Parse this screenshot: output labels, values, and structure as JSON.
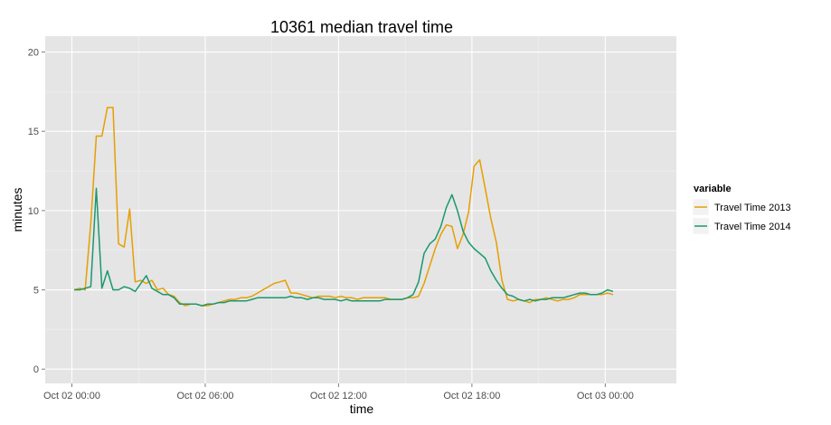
{
  "chart_data": {
    "type": "line",
    "title": "10361 median travel time",
    "xlabel": "time",
    "ylabel": "minutes",
    "x_unit": "hours from Oct 02 00:00",
    "xlim": [
      -1.2,
      27.2
    ],
    "ylim": [
      -0.9,
      21.0
    ],
    "x_ticks": [
      {
        "value": 0,
        "label": "Oct 02 00:00"
      },
      {
        "value": 6,
        "label": "Oct 02 06:00"
      },
      {
        "value": 12,
        "label": "Oct 02 12:00"
      },
      {
        "value": 18,
        "label": "Oct 02 18:00"
      },
      {
        "value": 24,
        "label": "Oct 03 00:00"
      }
    ],
    "y_ticks": [
      {
        "value": 0,
        "label": "0"
      },
      {
        "value": 5,
        "label": "5"
      },
      {
        "value": 10,
        "label": "10"
      },
      {
        "value": 15,
        "label": "15"
      },
      {
        "value": 20,
        "label": "20"
      }
    ],
    "grid": true,
    "legend": {
      "title": "variable",
      "position": "right"
    },
    "series": [
      {
        "name": "Travel Time 2013",
        "color": "#E69F00",
        "points": [
          [
            0.1,
            5.0
          ],
          [
            0.35,
            5.1
          ],
          [
            0.6,
            5.0
          ],
          [
            0.85,
            9.2
          ],
          [
            1.1,
            14.7
          ],
          [
            1.35,
            14.7
          ],
          [
            1.6,
            16.5
          ],
          [
            1.85,
            16.5
          ],
          [
            2.1,
            7.9
          ],
          [
            2.35,
            7.7
          ],
          [
            2.6,
            10.1
          ],
          [
            2.85,
            5.5
          ],
          [
            3.1,
            5.6
          ],
          [
            3.35,
            5.4
          ],
          [
            3.6,
            5.6
          ],
          [
            3.85,
            5.0
          ],
          [
            4.1,
            5.1
          ],
          [
            4.35,
            4.7
          ],
          [
            4.6,
            4.6
          ],
          [
            4.85,
            4.2
          ],
          [
            5.1,
            4.0
          ],
          [
            5.35,
            4.1
          ],
          [
            5.6,
            4.1
          ],
          [
            5.85,
            4.0
          ],
          [
            6.1,
            4.0
          ],
          [
            6.35,
            4.1
          ],
          [
            6.6,
            4.2
          ],
          [
            6.85,
            4.3
          ],
          [
            7.1,
            4.4
          ],
          [
            7.35,
            4.4
          ],
          [
            7.6,
            4.5
          ],
          [
            7.85,
            4.5
          ],
          [
            8.1,
            4.6
          ],
          [
            8.35,
            4.8
          ],
          [
            8.6,
            5.0
          ],
          [
            8.85,
            5.2
          ],
          [
            9.1,
            5.4
          ],
          [
            9.35,
            5.5
          ],
          [
            9.6,
            5.6
          ],
          [
            9.85,
            4.8
          ],
          [
            10.1,
            4.8
          ],
          [
            10.35,
            4.7
          ],
          [
            10.6,
            4.6
          ],
          [
            10.85,
            4.5
          ],
          [
            11.1,
            4.6
          ],
          [
            11.35,
            4.6
          ],
          [
            11.6,
            4.6
          ],
          [
            11.85,
            4.5
          ],
          [
            12.1,
            4.6
          ],
          [
            12.35,
            4.5
          ],
          [
            12.6,
            4.5
          ],
          [
            12.85,
            4.4
          ],
          [
            13.1,
            4.5
          ],
          [
            13.35,
            4.5
          ],
          [
            13.6,
            4.5
          ],
          [
            13.85,
            4.5
          ],
          [
            14.1,
            4.5
          ],
          [
            14.35,
            4.4
          ],
          [
            14.6,
            4.4
          ],
          [
            14.85,
            4.4
          ],
          [
            15.1,
            4.5
          ],
          [
            15.35,
            4.5
          ],
          [
            15.6,
            4.6
          ],
          [
            15.85,
            5.4
          ],
          [
            16.1,
            6.5
          ],
          [
            16.35,
            7.6
          ],
          [
            16.6,
            8.5
          ],
          [
            16.85,
            9.1
          ],
          [
            17.1,
            9.0
          ],
          [
            17.35,
            7.6
          ],
          [
            17.6,
            8.5
          ],
          [
            17.85,
            9.9
          ],
          [
            18.1,
            12.8
          ],
          [
            18.35,
            13.2
          ],
          [
            18.6,
            11.4
          ],
          [
            18.85,
            9.5
          ],
          [
            19.1,
            8.0
          ],
          [
            19.35,
            5.6
          ],
          [
            19.6,
            4.4
          ],
          [
            19.85,
            4.3
          ],
          [
            20.1,
            4.4
          ],
          [
            20.35,
            4.3
          ],
          [
            20.6,
            4.2
          ],
          [
            20.85,
            4.4
          ],
          [
            21.1,
            4.4
          ],
          [
            21.35,
            4.5
          ],
          [
            21.6,
            4.4
          ],
          [
            21.85,
            4.3
          ],
          [
            22.1,
            4.4
          ],
          [
            22.35,
            4.4
          ],
          [
            22.6,
            4.5
          ],
          [
            22.85,
            4.7
          ],
          [
            23.1,
            4.7
          ],
          [
            23.35,
            4.7
          ],
          [
            23.6,
            4.7
          ],
          [
            23.85,
            4.7
          ],
          [
            24.1,
            4.8
          ],
          [
            24.35,
            4.7
          ]
        ]
      },
      {
        "name": "Travel Time 2014",
        "color": "#1A9870",
        "points": [
          [
            0.1,
            5.0
          ],
          [
            0.35,
            5.0
          ],
          [
            0.6,
            5.1
          ],
          [
            0.85,
            5.2
          ],
          [
            1.1,
            11.4
          ],
          [
            1.35,
            5.1
          ],
          [
            1.6,
            6.2
          ],
          [
            1.85,
            5.0
          ],
          [
            2.1,
            5.0
          ],
          [
            2.35,
            5.2
          ],
          [
            2.6,
            5.1
          ],
          [
            2.85,
            4.9
          ],
          [
            3.1,
            5.4
          ],
          [
            3.35,
            5.9
          ],
          [
            3.6,
            5.1
          ],
          [
            3.85,
            4.9
          ],
          [
            4.1,
            4.7
          ],
          [
            4.35,
            4.7
          ],
          [
            4.6,
            4.5
          ],
          [
            4.85,
            4.1
          ],
          [
            5.1,
            4.1
          ],
          [
            5.35,
            4.1
          ],
          [
            5.6,
            4.1
          ],
          [
            5.85,
            4.0
          ],
          [
            6.1,
            4.1
          ],
          [
            6.35,
            4.1
          ],
          [
            6.6,
            4.2
          ],
          [
            6.85,
            4.2
          ],
          [
            7.1,
            4.3
          ],
          [
            7.35,
            4.3
          ],
          [
            7.6,
            4.3
          ],
          [
            7.85,
            4.3
          ],
          [
            8.1,
            4.4
          ],
          [
            8.35,
            4.5
          ],
          [
            8.6,
            4.5
          ],
          [
            8.85,
            4.5
          ],
          [
            9.1,
            4.5
          ],
          [
            9.35,
            4.5
          ],
          [
            9.6,
            4.5
          ],
          [
            9.85,
            4.6
          ],
          [
            10.1,
            4.5
          ],
          [
            10.35,
            4.5
          ],
          [
            10.6,
            4.4
          ],
          [
            10.85,
            4.5
          ],
          [
            11.1,
            4.5
          ],
          [
            11.35,
            4.4
          ],
          [
            11.6,
            4.4
          ],
          [
            11.85,
            4.4
          ],
          [
            12.1,
            4.3
          ],
          [
            12.35,
            4.4
          ],
          [
            12.6,
            4.3
          ],
          [
            12.85,
            4.3
          ],
          [
            13.1,
            4.3
          ],
          [
            13.35,
            4.3
          ],
          [
            13.6,
            4.3
          ],
          [
            13.85,
            4.3
          ],
          [
            14.1,
            4.4
          ],
          [
            14.35,
            4.4
          ],
          [
            14.6,
            4.4
          ],
          [
            14.85,
            4.4
          ],
          [
            15.1,
            4.5
          ],
          [
            15.35,
            4.7
          ],
          [
            15.6,
            5.5
          ],
          [
            15.85,
            7.3
          ],
          [
            16.1,
            7.9
          ],
          [
            16.35,
            8.2
          ],
          [
            16.6,
            9.0
          ],
          [
            16.85,
            10.2
          ],
          [
            17.1,
            11.0
          ],
          [
            17.35,
            10.0
          ],
          [
            17.6,
            8.7
          ],
          [
            17.85,
            8.0
          ],
          [
            18.1,
            7.6
          ],
          [
            18.35,
            7.3
          ],
          [
            18.6,
            7.0
          ],
          [
            18.85,
            6.2
          ],
          [
            19.1,
            5.6
          ],
          [
            19.35,
            5.1
          ],
          [
            19.6,
            4.7
          ],
          [
            19.85,
            4.6
          ],
          [
            20.1,
            4.4
          ],
          [
            20.35,
            4.3
          ],
          [
            20.6,
            4.4
          ],
          [
            20.85,
            4.3
          ],
          [
            21.1,
            4.4
          ],
          [
            21.35,
            4.4
          ],
          [
            21.6,
            4.5
          ],
          [
            21.85,
            4.5
          ],
          [
            22.1,
            4.5
          ],
          [
            22.35,
            4.6
          ],
          [
            22.6,
            4.7
          ],
          [
            22.85,
            4.8
          ],
          [
            23.1,
            4.8
          ],
          [
            23.35,
            4.7
          ],
          [
            23.6,
            4.7
          ],
          [
            23.85,
            4.8
          ],
          [
            24.1,
            5.0
          ],
          [
            24.35,
            4.9
          ]
        ]
      }
    ]
  }
}
